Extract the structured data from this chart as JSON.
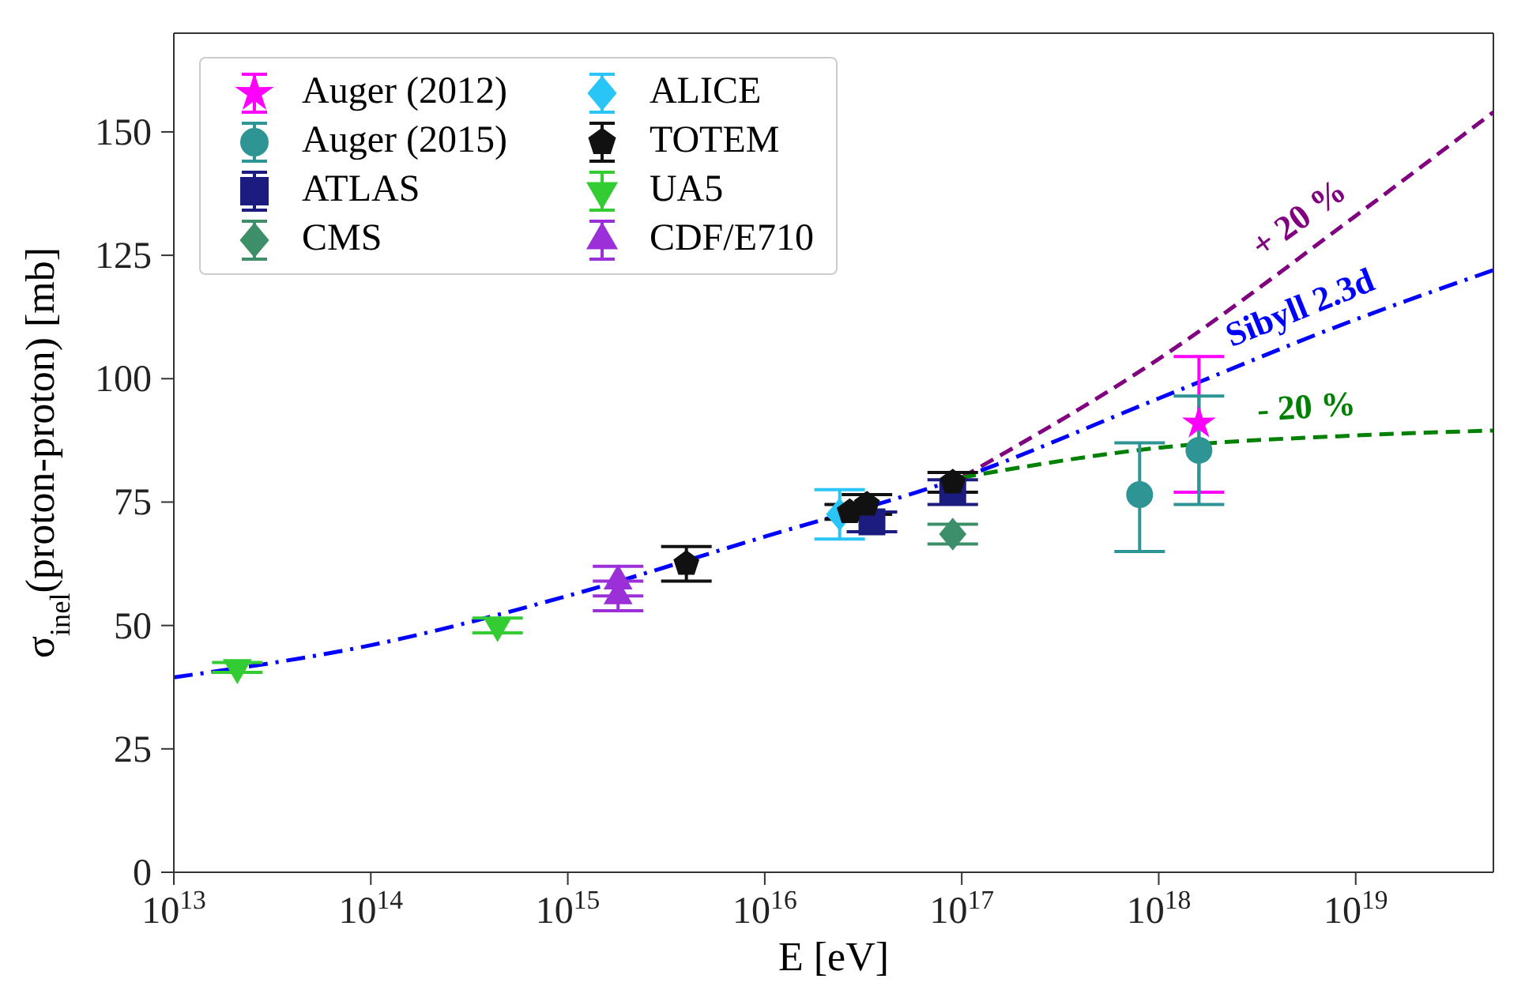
{
  "chart_data": {
    "type": "scatter",
    "xlabel": "E [eV]",
    "ylabel": "σ$_{inel}$(proton-proton) [mb]",
    "log": "x",
    "xlim": [
      10000000000000.0,
      5e+19
    ],
    "xticks": [
      {
        "value": 10000000000000.0,
        "label": "10$^{13}$"
      },
      {
        "value": 100000000000000.0,
        "label": "10$^{14}$"
      },
      {
        "value": 1000000000000000.0,
        "label": "10$^{15}$"
      },
      {
        "value": 1e+16,
        "label": "10$^{16}$"
      },
      {
        "value": 1e+17,
        "label": "10$^{17}$"
      },
      {
        "value": 1e+18,
        "label": "10$^{18}$"
      },
      {
        "value": 1e+19,
        "label": "10$^{19}$"
      }
    ],
    "ylim": [
      0,
      170
    ],
    "yticks": [
      0,
      25,
      50,
      75,
      100,
      125,
      150
    ],
    "grid": false,
    "legend": "top left",
    "series": [
      {
        "name": "+ 20 %",
        "type": "line",
        "color": "#800080",
        "line_style": "dashed",
        "marker": "none",
        "x": [
          1e+17,
          1e+18,
          1e+19,
          5e+19
        ],
        "values": [
          80,
          104,
          133,
          154
        ]
      },
      {
        "name": "Sibyll 2.3d",
        "type": "line",
        "color": "#0000ff",
        "line_style": "dashdot",
        "marker": "none",
        "x": [
          10000000000000.0,
          100000000000000.0,
          1000000000000000.0,
          1e+16,
          1e+17,
          1e+18,
          1e+19,
          5e+19
        ],
        "values": [
          39.5,
          46,
          56,
          68,
          80,
          96,
          112,
          122
        ]
      },
      {
        "name": "- 20 %",
        "type": "line",
        "color": "#008000",
        "line_style": "dashed",
        "marker": "none",
        "x": [
          1e+17,
          1e+18,
          1e+19,
          5e+19
        ],
        "values": [
          80,
          86,
          88.5,
          89.5
        ]
      },
      {
        "name": "Auger (2012)",
        "color": "#ff00ff",
        "marker": "star",
        "x": [
          1.6e+18
        ],
        "values": [
          91
        ],
        "errors": [
          [
            77,
            104.5
          ]
        ]
      },
      {
        "name": "Auger (2015)",
        "color": "#2e9494",
        "marker": "circle",
        "x": [
          8e+17,
          1.6e+18
        ],
        "values": [
          76.5,
          85.5
        ],
        "errors": [
          [
            65,
            87
          ],
          [
            74.5,
            96.5
          ]
        ]
      },
      {
        "name": "ATLAS",
        "color": "#1c1c80",
        "marker": "square",
        "x": [
          3.5e+16,
          9e+16
        ],
        "values": [
          71,
          77
        ],
        "errors": [
          2,
          2.5
        ]
      },
      {
        "name": "CMS",
        "color": "#3d8f6a",
        "marker": "diamond",
        "x": [
          9e+16
        ],
        "values": [
          68.5
        ],
        "errors": [
          2
        ]
      },
      {
        "name": "ALICE",
        "color": "#29c5f6",
        "marker": "diamond",
        "x": [
          2.4e+16
        ],
        "values": [
          72.5
        ],
        "errors": [
          5
        ]
      },
      {
        "name": "TOTEM",
        "color": "#111111",
        "x": [
          4000000000000000.0,
          2.7e+16,
          3.3e+16,
          9e+16
        ],
        "values": [
          62.5,
          73,
          74.5,
          79
        ],
        "errors": [
          3.5,
          1.5,
          2,
          2
        ]
      },
      {
        "name": "UA5",
        "color": "#33cc33",
        "marker": "triangle-down",
        "x": [
          21000000000000.0,
          440000000000000.0
        ],
        "values": [
          41.5,
          50
        ],
        "errors": [
          1,
          1.5
        ]
      },
      {
        "name": "CDF/E710",
        "color": "#9b30d9",
        "marker": "triangle",
        "x": [
          1800000000000000.0,
          1800000000000000.0
        ],
        "values": [
          59,
          56
        ],
        "errors": [
          3,
          3
        ]
      }
    ]
  }
}
